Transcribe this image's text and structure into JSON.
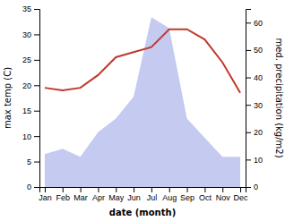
{
  "chart_data": {
    "type": "line",
    "categories": [
      "Jan",
      "Feb",
      "Mar",
      "Apr",
      "May",
      "Jun",
      "Jul",
      "Aug",
      "Sep",
      "Oct",
      "Nov",
      "Dec"
    ],
    "xlabel": "date (month)",
    "ylabel": "max temp (C)",
    "y2label": "med. precipitation (kg/m2)",
    "ylim": [
      0,
      35
    ],
    "yticks": [
      0,
      5,
      10,
      15,
      20,
      25,
      30,
      35
    ],
    "y2lim": [
      0,
      65
    ],
    "y2ticks": [
      0,
      10,
      20,
      30,
      40,
      50,
      60
    ],
    "grid": false,
    "series": [
      {
        "type": "line",
        "color": "#c0392b",
        "values": [
          19.5,
          19.0,
          19.5,
          22.0,
          25.5,
          26.5,
          27.5,
          31.0,
          31.0,
          29.0,
          24.5,
          18.5
        ]
      },
      {
        "type": "area",
        "color": "#c5caf0",
        "axis": "y2",
        "values": [
          12,
          14,
          11,
          20,
          25,
          33,
          62,
          58,
          25,
          18,
          11,
          11
        ]
      }
    ]
  }
}
